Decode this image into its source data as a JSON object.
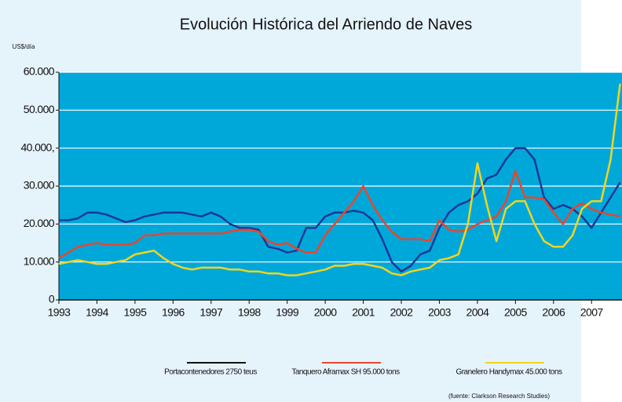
{
  "chart_data": {
    "type": "line",
    "title": "Evolución Histórica del Arriendo de Naves",
    "y_unit": "US$/día",
    "source": "(fuente: Clarkson Research Studies)",
    "x": [
      1993,
      1993.25,
      1993.5,
      1993.75,
      1994,
      1994.25,
      1994.5,
      1994.75,
      1995,
      1995.25,
      1995.5,
      1995.75,
      1996,
      1996.25,
      1996.5,
      1996.75,
      1997,
      1997.25,
      1997.5,
      1997.75,
      1998,
      1998.25,
      1998.5,
      1998.75,
      1999,
      1999.25,
      1999.5,
      1999.75,
      2000,
      2000.25,
      2000.5,
      2000.75,
      2001,
      2001.25,
      2001.5,
      2001.75,
      2002,
      2002.25,
      2002.5,
      2002.75,
      2003,
      2003.25,
      2003.5,
      2003.75,
      2004,
      2004.25,
      2004.5,
      2004.75,
      2005,
      2005.25,
      2005.5,
      2005.75,
      2006,
      2006.25,
      2006.5,
      2006.75,
      2007,
      2007.25,
      2007.5,
      2007.75
    ],
    "series": [
      {
        "name": "Portacontenedores 2750 teus",
        "color": "#1f3796",
        "legend_color": "#111111",
        "values": [
          21000,
          21000,
          21500,
          23000,
          23000,
          22500,
          21500,
          20500,
          21000,
          22000,
          22500,
          23000,
          23000,
          23000,
          22500,
          22000,
          23000,
          22000,
          20000,
          19000,
          19000,
          18500,
          14000,
          13500,
          12500,
          13000,
          19000,
          19000,
          22000,
          23000,
          23000,
          23500,
          23000,
          21000,
          16000,
          10000,
          7500,
          9000,
          12000,
          13000,
          19000,
          23000,
          25000,
          26000,
          28000,
          32000,
          33000,
          37000,
          40000,
          40000,
          37000,
          27000,
          24000,
          25000,
          24000,
          22000,
          19000,
          23000,
          27000,
          31000
        ]
      },
      {
        "name": "Tanquero Aframax SH 95.000 tons",
        "color": "#e8462c",
        "legend_color": "#e8462c",
        "values": [
          11000,
          12500,
          14000,
          14500,
          15000,
          14500,
          14500,
          14500,
          15000,
          17000,
          17000,
          17500,
          17500,
          17500,
          17500,
          17500,
          17500,
          17500,
          18000,
          18500,
          18500,
          18000,
          15500,
          14500,
          15000,
          13500,
          12500,
          12500,
          17000,
          20000,
          23000,
          26000,
          30000,
          25000,
          21000,
          18000,
          16000,
          16000,
          16000,
          15500,
          21000,
          18500,
          18000,
          18500,
          20000,
          21000,
          22000,
          26000,
          34000,
          27000,
          27000,
          26500,
          23000,
          20000,
          24000,
          25500,
          24000,
          23000,
          22500,
          22000
        ]
      },
      {
        "name": "Granelero Handymax 45.000 tons",
        "color": "#f3d51c",
        "legend_color": "#f3d51c",
        "values": [
          9500,
          10000,
          10500,
          10000,
          9500,
          9500,
          10000,
          10500,
          12000,
          12500,
          13000,
          11000,
          9500,
          8500,
          8000,
          8500,
          8500,
          8500,
          8000,
          8000,
          7500,
          7500,
          7000,
          7000,
          6500,
          6500,
          7000,
          7500,
          8000,
          9000,
          9000,
          9500,
          9500,
          9000,
          8500,
          7000,
          6500,
          7500,
          8000,
          8500,
          10500,
          11000,
          12000,
          20000,
          36000,
          25000,
          15500,
          24000,
          26000,
          26000,
          20000,
          15500,
          14000,
          14000,
          17000,
          24000,
          26000,
          26000,
          37000,
          57000
        ]
      }
    ],
    "xlim": [
      1993,
      2007.8
    ],
    "xticks": [
      1993,
      1994,
      1995,
      1996,
      1997,
      1998,
      1999,
      2000,
      2001,
      2002,
      2003,
      2004,
      2005,
      2006,
      2007
    ],
    "ylim": [
      0,
      60000
    ],
    "yticks": [
      0,
      {
        "value": 10000,
        "label": "10.000"
      },
      {
        "value": 20000,
        "label": "20.000"
      },
      {
        "value": 30000,
        "label": "30.000"
      },
      {
        "value": 40000,
        "label": "40.000,"
      },
      {
        "value": 50000,
        "label": "50.000"
      },
      {
        "value": 60000,
        "label": "60.000"
      }
    ],
    "grid": true,
    "plot_background": "#00a8da",
    "legend": "bottom"
  }
}
